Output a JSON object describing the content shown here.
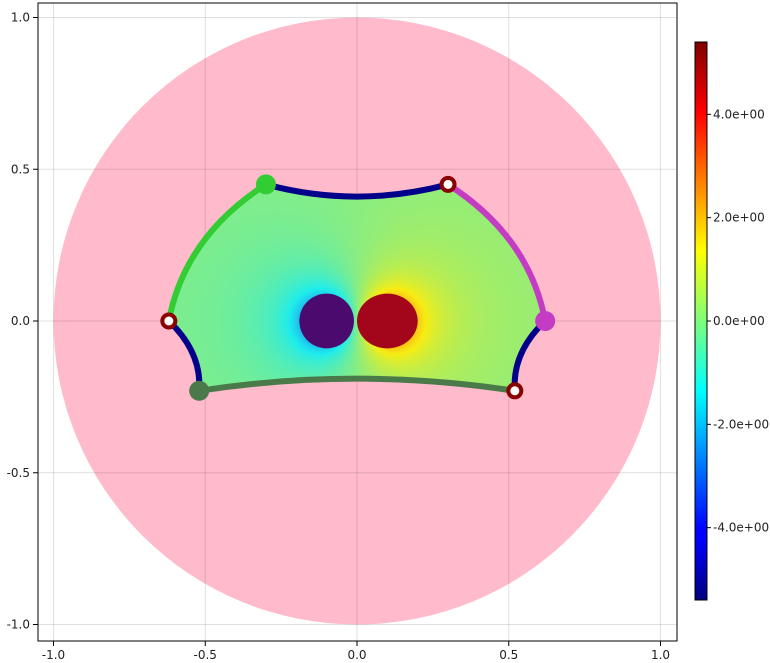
{
  "chart_data": {
    "type": "scatter",
    "title": "",
    "xlabel": "",
    "ylabel": "",
    "xlim": [
      -1.05,
      1.05
    ],
    "ylim": [
      -1.05,
      1.05
    ],
    "xticks": [
      -1.0,
      -0.5,
      0.0,
      0.5,
      1.0
    ],
    "yticks": [
      -1.0,
      -0.5,
      0.0,
      0.5,
      1.0
    ],
    "xtick_labels": [
      "-1.0",
      "-0.5",
      "0.0",
      "0.5",
      "1.0"
    ],
    "ytick_labels": [
      "-1.0",
      "-0.5",
      "0.0",
      "0.5",
      "1.0"
    ],
    "grid": true,
    "disk": {
      "center": [
        0,
        0
      ],
      "radius": 1.0,
      "color": "#ffbacb"
    },
    "polygon_vertices": [
      {
        "x": -0.3,
        "y": 0.45,
        "color": "#32cd32",
        "kind": "large"
      },
      {
        "x": 0.3,
        "y": 0.45,
        "color": "#8b0000",
        "kind": "small"
      },
      {
        "x": 0.62,
        "y": 0.0,
        "color": "#c43cc4",
        "kind": "large"
      },
      {
        "x": 0.52,
        "y": -0.23,
        "color": "#8b0000",
        "kind": "small"
      },
      {
        "x": -0.52,
        "y": -0.23,
        "color": "#4a7a4a",
        "kind": "large"
      },
      {
        "x": -0.62,
        "y": 0.0,
        "color": "#8b0000",
        "kind": "small"
      }
    ],
    "edges": [
      {
        "from": 0,
        "to": 1,
        "bow": -0.04,
        "color": "#00008b"
      },
      {
        "from": 1,
        "to": 2,
        "bow": 0.06,
        "color": "#c43cc4"
      },
      {
        "from": 2,
        "to": 3,
        "bow": -0.03,
        "color": "#00008b"
      },
      {
        "from": 3,
        "to": 4,
        "bow": -0.04,
        "color": "#4a7a4a"
      },
      {
        "from": 4,
        "to": 5,
        "bow": -0.03,
        "color": "#00008b"
      },
      {
        "from": 5,
        "to": 0,
        "bow": 0.06,
        "color": "#32cd32"
      }
    ],
    "field": {
      "colormap": "jet",
      "poles": [
        {
          "x": -0.1,
          "y": 0.0,
          "sign": -1
        },
        {
          "x": 0.1,
          "y": 0.0,
          "sign": 1
        }
      ]
    },
    "colorbar": {
      "range": [
        -5.4,
        5.4
      ],
      "ticks": [
        -4.0,
        -2.0,
        0.0,
        2.0,
        4.0
      ],
      "tick_labels": [
        "-4.0e+00",
        "-2.0e+00",
        "0.0e+00",
        "2.0e+00",
        "4.0e+00"
      ]
    }
  }
}
